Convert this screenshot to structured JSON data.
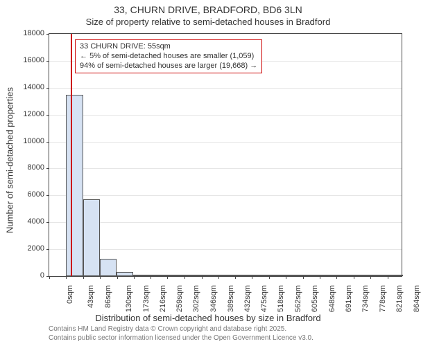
{
  "title_main": "33, CHURN DRIVE, BRADFORD, BD6 3LN",
  "title_sub": "Size of property relative to semi-detached houses in Bradford",
  "x_axis_title": "Distribution of semi-detached houses by size in Bradford",
  "y_axis_title": "Number of semi-detached properties",
  "footer_line1": "Contains HM Land Registry data © Crown copyright and database right 2025.",
  "footer_line2": "Contains public sector information licensed under the Open Government Licence v3.0.",
  "chart": {
    "type": "histogram",
    "background_color": "#ffffff",
    "grid_color": "#e6e6e6",
    "border_color": "#444444",
    "bar_fill": "#d6e2f3",
    "bar_stroke": "#555555",
    "marker_color": "#cc0000",
    "label_fontsize": 11,
    "axis_title_fontsize": 13,
    "title_fontsize": 14,
    "x_min": 0,
    "x_max": 900,
    "bin_width": 43,
    "x_ticks": [
      0,
      43,
      86,
      130,
      173,
      216,
      259,
      302,
      346,
      389,
      432,
      475,
      518,
      562,
      605,
      648,
      691,
      734,
      778,
      821,
      864
    ],
    "x_tick_suffix": "sqm",
    "y_min": 0,
    "y_max": 18000,
    "y_ticks": [
      0,
      2000,
      4000,
      6000,
      8000,
      10000,
      12000,
      14000,
      16000,
      18000
    ],
    "marker_x": 55,
    "values": [
      0,
      13500,
      5700,
      1300,
      300,
      100,
      70,
      50,
      30,
      20,
      15,
      10,
      8,
      6,
      5,
      4,
      3,
      2,
      2,
      1,
      1
    ],
    "annotation": {
      "lines": [
        "33 CHURN DRIVE: 55sqm",
        "← 5% of semi-detached houses are smaller (1,059)",
        "94% of semi-detached houses are larger (19,668) →"
      ],
      "box_border": "#cc0000",
      "box_bg": "#ffffff",
      "fontsize": 11
    }
  }
}
